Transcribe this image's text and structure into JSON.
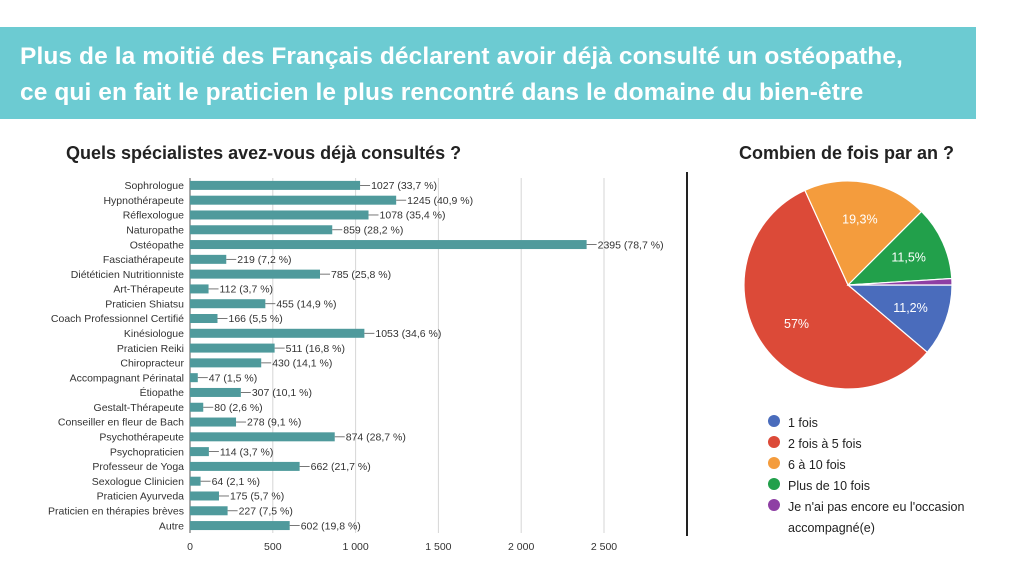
{
  "banner": {
    "line1": "Plus de la moitié des Français déclarent avoir déjà consulté un ostéopathe,",
    "line2": "ce qui en fait le praticien le plus rencontré dans le domaine du bien-être",
    "bg_color": "#6ccbd2"
  },
  "chart_data": [
    {
      "type": "bar",
      "orientation": "horizontal",
      "title": "Quels spécialistes avez-vous déjà consultés ?",
      "categories": [
        "Sophrologue",
        "Hypnothérapeute",
        "Réflexologue",
        "Naturopathe",
        "Ostéopathe",
        "Fasciathérapeute",
        "Diététicien Nutritionniste",
        "Art-Thérapeute",
        "Praticien Shiatsu",
        "Coach Professionnel Certifié",
        "Kinésiologue",
        "Praticien Reiki",
        "Chiropracteur",
        "Accompagnant Périnatal",
        "Étiopathe",
        "Gestalt-Thérapeute",
        "Conseiller en fleur de Bach",
        "Psychothérapeute",
        "Psychopraticien",
        "Professeur de Yoga",
        "Sexologue Clinicien",
        "Praticien Ayurveda",
        "Praticien en thérapies brèves",
        "Autre"
      ],
      "values": [
        1027,
        1245,
        1078,
        859,
        2395,
        219,
        785,
        112,
        455,
        166,
        1053,
        511,
        430,
        47,
        307,
        80,
        278,
        874,
        114,
        662,
        64,
        175,
        227,
        602
      ],
      "labels": [
        "1027 (33,7 %)",
        "1245 (40,9 %)",
        "1078 (35,4 %)",
        "859 (28,2 %)",
        "2395 (78,7 %)",
        "219 (7,2 %)",
        "785 (25,8 %)",
        "112 (3,7 %)",
        "455 (14,9 %)",
        "166 (5,5 %)",
        "1053 (34,6 %)",
        "511 (16,8 %)",
        "430 (14,1 %)",
        "47 (1,5 %)",
        "307 (10,1 %)",
        "80 (2,6 %)",
        "278 (9,1 %)",
        "874 (28,7 %)",
        "114 (3,7 %)",
        "662 (21,7 %)",
        "64 (2,1 %)",
        "175 (5,7 %)",
        "227 (7,5 %)",
        "602 (19,8 %)"
      ],
      "xlim": [
        0,
        2500
      ],
      "x_ticks": [
        0,
        500,
        1000,
        1500,
        2000,
        2500
      ],
      "x_tick_labels": [
        "0",
        "500",
        "1 000",
        "1 500",
        "2 000",
        "2 500"
      ],
      "grid": true,
      "bar_color": "#4f9a9c"
    },
    {
      "type": "pie",
      "title": "Combien de fois par an ?",
      "categories": [
        "1 fois",
        "2 fois à 5 fois",
        "6 à 10 fois",
        "Plus de 10 fois",
        "Je n'ai pas encore eu l'occasion accompagné(e)"
      ],
      "legend_lines": [
        [
          "1 fois"
        ],
        [
          "2 fois à 5 fois"
        ],
        [
          "6 à 10 fois"
        ],
        [
          "Plus de 10 fois"
        ],
        [
          "Je n'ai pas encore eu l'occasion",
          "accompagné(e)"
        ]
      ],
      "values": [
        11.2,
        57,
        19.3,
        11.5,
        1.0
      ],
      "slice_labels": [
        "11,2%",
        "57%",
        "19,3%",
        "11,5%",
        ""
      ],
      "colors": [
        "#4a6cbc",
        "#dc4a38",
        "#f49c3d",
        "#22a04b",
        "#8e3fa4"
      ],
      "legend_position": "bottom"
    }
  ]
}
